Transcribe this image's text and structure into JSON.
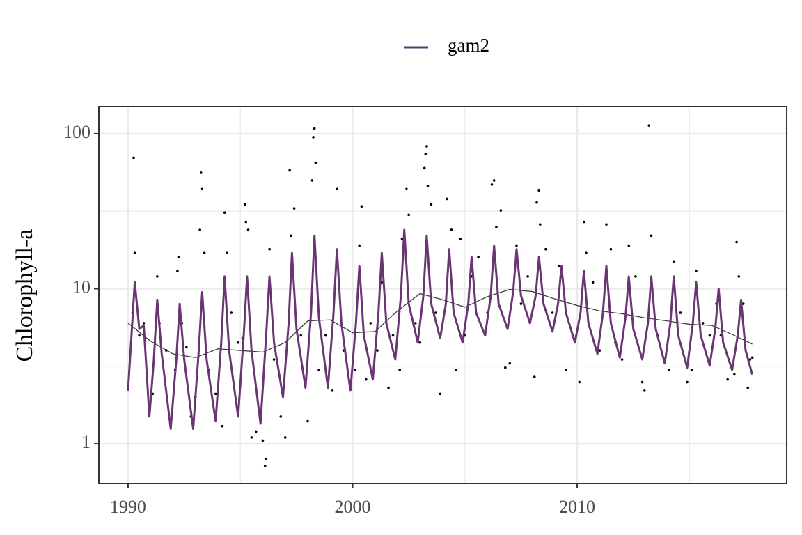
{
  "chart_data": {
    "type": "line",
    "ylabel": "Chlorophyll-a",
    "ylog": true,
    "grid": true,
    "legend": "top",
    "xlim": [
      1988.7,
      2019.33
    ],
    "xticks": [
      1990,
      2000,
      2010
    ],
    "xminor": [
      1995,
      2005,
      2015
    ],
    "ylim": [
      0.555,
      149.6
    ],
    "yticks": [
      1,
      10,
      100
    ],
    "yminor": [
      3.162,
      31.62
    ],
    "series": [
      {
        "mark": "scatter",
        "color": "#000000",
        "x": [
          1990.2,
          1990.25,
          1990.3,
          1990.5,
          1990.7,
          1991.1,
          1991.3,
          1991.4,
          1991.7,
          1992.1,
          1992.2,
          1992.25,
          1992.4,
          1992.6,
          1992.8,
          1993.0,
          1993.2,
          1993.25,
          1993.3,
          1993.4,
          1993.6,
          1993.9,
          1994.2,
          1994.3,
          1994.4,
          1994.6,
          1994.9,
          1995.1,
          1995.2,
          1995.25,
          1995.3,
          1995.35,
          1995.5,
          1995.7,
          1996.0,
          1996.1,
          1996.15,
          1996.3,
          1996.5,
          1996.8,
          1997.0,
          1997.2,
          1997.25,
          1997.4,
          1997.7,
          1998.0,
          1998.2,
          1998.25,
          1998.3,
          1998.35,
          1998.5,
          1998.8,
          1999.1,
          1999.3,
          1999.6,
          2000.1,
          2000.3,
          2000.4,
          2000.6,
          2000.8,
          2001.1,
          2001.3,
          2001.6,
          2001.8,
          2002.1,
          2002.2,
          2002.4,
          2002.5,
          2002.8,
          2003.0,
          2003.2,
          2003.25,
          2003.3,
          2003.35,
          2003.5,
          2003.7,
          2003.9,
          2004.2,
          2004.4,
          2004.6,
          2004.8,
          2005.0,
          2005.3,
          2005.6,
          2006.0,
          2006.2,
          2006.3,
          2006.4,
          2006.6,
          2006.8,
          2007.0,
          2007.3,
          2007.5,
          2007.8,
          2008.1,
          2008.2,
          2008.3,
          2008.35,
          2008.6,
          2008.9,
          2009.2,
          2009.5,
          2009.8,
          2010.1,
          2010.3,
          2010.4,
          2010.7,
          2011.0,
          2011.3,
          2011.5,
          2011.7,
          2012.0,
          2012.3,
          2012.6,
          2012.9,
          2013.0,
          2013.2,
          2013.3,
          2013.6,
          2014.1,
          2014.3,
          2014.6,
          2014.9,
          2015.1,
          2015.3,
          2015.6,
          2015.9,
          2016.2,
          2016.4,
          2016.7,
          2017.0,
          2017.1,
          2017.2,
          2017.4,
          2017.6,
          2017.7,
          2017.8
        ],
        "values": [
          7,
          70,
          17,
          5,
          6,
          2.1,
          12,
          6,
          4,
          3,
          13,
          16,
          6,
          4.2,
          1.5,
          2,
          24,
          56,
          44,
          17,
          3,
          2.1,
          1.3,
          31,
          17,
          7,
          4.5,
          4.8,
          35,
          27,
          10,
          24,
          1.1,
          1.2,
          1.05,
          0.72,
          0.8,
          18,
          3.5,
          1.5,
          1.1,
          58,
          22,
          33,
          5,
          1.4,
          50,
          95,
          108,
          65,
          3,
          5,
          2.2,
          44,
          4,
          3,
          19,
          34,
          2.6,
          6,
          4,
          11,
          2.3,
          5,
          3,
          21,
          44,
          30,
          6,
          4.5,
          60,
          74,
          83,
          46,
          35,
          7,
          2.1,
          38,
          24,
          3,
          21,
          5,
          12,
          16,
          7,
          47,
          50,
          25,
          32,
          3.1,
          3.3,
          19,
          8,
          12,
          2.7,
          36,
          43,
          26,
          18,
          7,
          14,
          3,
          5,
          2.5,
          27,
          17,
          11,
          4,
          26,
          18,
          4.5,
          3.5,
          19,
          12,
          2.5,
          2.2,
          113,
          22,
          5,
          3,
          15,
          7,
          2.5,
          3,
          13,
          6,
          5,
          8,
          5,
          2.6,
          2.8,
          20,
          12,
          8,
          2.3,
          3.5,
          3.6
        ]
      },
      {
        "mark": "line",
        "color": "#333333",
        "x": [
          1990,
          1991,
          1992,
          1993,
          1994,
          1995,
          1996,
          1997,
          1998,
          1999,
          2000,
          2001,
          2002,
          2003,
          2004,
          2005,
          2006,
          2007,
          2008,
          2009,
          2010,
          2011,
          2012,
          2013,
          2014,
          2015,
          2016,
          2017,
          2017.8
        ],
        "values": [
          6.0,
          4.6,
          3.8,
          3.6,
          4.1,
          4.0,
          3.9,
          4.5,
          6.2,
          6.3,
          5.2,
          5.3,
          7.2,
          9.3,
          8.5,
          7.6,
          8.9,
          9.9,
          9.6,
          8.6,
          7.8,
          7.2,
          6.9,
          6.5,
          6.2,
          5.9,
          5.8,
          5.0,
          4.4
        ]
      },
      {
        "mark": "line",
        "name": "gam2",
        "color": "#6a3573",
        "x": [
          1990.0,
          1990.3,
          1990.5,
          1990.7,
          1990.95,
          1991.15,
          1991.3,
          1991.5,
          1991.9,
          1992.15,
          1992.3,
          1992.5,
          1992.9,
          1993.15,
          1993.3,
          1993.5,
          1993.9,
          1994.15,
          1994.3,
          1994.5,
          1994.9,
          1995.15,
          1995.3,
          1995.5,
          1995.9,
          1996.15,
          1996.3,
          1996.5,
          1996.9,
          1997.15,
          1997.3,
          1997.5,
          1997.9,
          1998.15,
          1998.3,
          1998.5,
          1998.9,
          1999.15,
          1999.3,
          1999.5,
          1999.9,
          2000.15,
          2000.3,
          2000.5,
          2000.9,
          2001.15,
          2001.3,
          2001.5,
          2001.9,
          2002.15,
          2002.3,
          2002.5,
          2002.9,
          2003.15,
          2003.3,
          2003.5,
          2003.9,
          2004.15,
          2004.3,
          2004.5,
          2004.9,
          2005.15,
          2005.3,
          2005.5,
          2005.9,
          2006.15,
          2006.3,
          2006.5,
          2006.9,
          2007.15,
          2007.3,
          2007.5,
          2007.9,
          2008.15,
          2008.3,
          2008.5,
          2008.9,
          2009.15,
          2009.3,
          2009.5,
          2009.9,
          2010.15,
          2010.3,
          2010.5,
          2010.9,
          2011.15,
          2011.3,
          2011.5,
          2011.9,
          2012.15,
          2012.3,
          2012.5,
          2012.9,
          2013.15,
          2013.3,
          2013.5,
          2013.9,
          2014.15,
          2014.3,
          2014.5,
          2014.9,
          2015.15,
          2015.3,
          2015.5,
          2015.9,
          2016.15,
          2016.3,
          2016.5,
          2016.9,
          2017.15,
          2017.3,
          2017.5,
          2017.8
        ],
        "values": [
          2.2,
          11,
          5.5,
          5.8,
          1.5,
          3.5,
          8.5,
          3.8,
          1.25,
          3.5,
          8,
          3.5,
          1.25,
          4,
          9.5,
          3.5,
          1.4,
          4.5,
          12,
          4,
          1.5,
          5,
          12,
          4,
          1.35,
          5,
          12,
          4.5,
          2.0,
          6,
          17,
          5.5,
          2.3,
          7,
          22,
          6.5,
          2.3,
          7,
          18,
          6,
          2.2,
          6,
          14,
          5,
          2.6,
          7,
          17,
          6,
          3.5,
          9,
          24,
          8,
          4.5,
          9,
          22,
          8,
          4.8,
          8,
          18,
          7,
          4.5,
          8,
          16,
          7,
          5.0,
          9,
          19,
          8,
          5.5,
          9.5,
          18,
          9,
          6.0,
          9,
          16,
          8,
          5.3,
          8,
          14,
          7,
          4.5,
          7,
          13,
          6,
          3.8,
          7,
          14,
          6,
          3.6,
          6.5,
          12,
          5.5,
          3.5,
          6,
          12,
          5.5,
          3.3,
          6,
          12,
          5,
          3.1,
          6,
          11,
          5,
          3.2,
          5.5,
          10,
          4.5,
          3.0,
          5,
          8.5,
          4,
          2.8
        ]
      }
    ]
  }
}
